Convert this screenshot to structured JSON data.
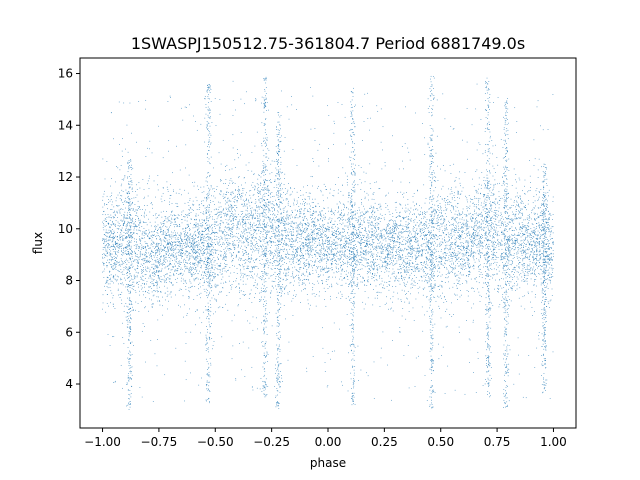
{
  "chart_data": {
    "type": "scatter",
    "title": "1SWASPJ150512.75-361804.7 Period 6881749.0s",
    "xlabel": "phase",
    "ylabel": "flux",
    "xlim": [
      -1.1,
      1.1
    ],
    "ylim": [
      2.3,
      16.6
    ],
    "x_ticks": [
      -1.0,
      -0.75,
      -0.5,
      -0.25,
      0.0,
      0.25,
      0.5,
      0.75,
      1.0
    ],
    "x_tick_labels": [
      "−1.00",
      "−0.75",
      "−0.50",
      "−0.25",
      "0.00",
      "0.25",
      "0.50",
      "0.75",
      "1.00"
    ],
    "y_ticks": [
      4,
      6,
      8,
      10,
      12,
      14,
      16
    ],
    "y_tick_labels": [
      "4",
      "6",
      "8",
      "10",
      "12",
      "14",
      "16"
    ],
    "grid": false,
    "legend": "none",
    "marker_color": "#1f77b4",
    "series": [
      {
        "x_range": [
          -1.0,
          1.0
        ],
        "envelope": {
          "phase": [
            -1.0,
            -0.95,
            -0.9,
            -0.85,
            -0.8,
            -0.75,
            -0.7,
            -0.65,
            -0.6,
            -0.55,
            -0.5,
            -0.45,
            -0.4,
            -0.35,
            -0.3,
            -0.25,
            -0.2,
            -0.15,
            -0.1,
            -0.05,
            0.0,
            0.05,
            0.1,
            0.15,
            0.2,
            0.25,
            0.3,
            0.35,
            0.4,
            0.45,
            0.5,
            0.55,
            0.6,
            0.65,
            0.7,
            0.75,
            0.8,
            0.85,
            0.9,
            0.95,
            1.0
          ],
          "center": [
            9.5,
            9.2,
            9.6,
            9.3,
            9.1,
            9.0,
            9.4,
            9.2,
            9.3,
            9.5,
            9.1,
            9.8,
            10.0,
            9.7,
            9.8,
            10.0,
            9.6,
            9.4,
            9.5,
            9.6,
            9.4,
            9.5,
            9.3,
            9.5,
            9.4,
            9.3,
            9.4,
            9.2,
            9.4,
            9.3,
            9.7,
            9.5,
            9.4,
            9.6,
            10.0,
            9.7,
            9.4,
            9.5,
            9.3,
            9.6,
            9.3
          ],
          "spread": [
            1.6,
            1.5,
            2.0,
            1.8,
            1.6,
            1.4,
            1.5,
            1.3,
            1.4,
            1.3,
            1.9,
            1.7,
            1.9,
            1.7,
            2.0,
            1.9,
            1.6,
            1.4,
            1.5,
            1.4,
            1.3,
            1.4,
            1.6,
            1.4,
            1.3,
            1.4,
            1.3,
            1.4,
            1.3,
            1.5,
            1.8,
            1.6,
            1.5,
            1.6,
            1.9,
            1.8,
            1.6,
            1.5,
            1.4,
            1.5,
            1.4
          ]
        },
        "spikes": [
          {
            "phase": -0.88,
            "low": 3.0,
            "high": 13.0
          },
          {
            "phase": -0.53,
            "low": 3.2,
            "high": 15.6
          },
          {
            "phase": -0.28,
            "low": 3.5,
            "high": 15.9
          },
          {
            "phase": -0.22,
            "low": 3.0,
            "high": 14.5
          },
          {
            "phase": 0.11,
            "low": 3.0,
            "high": 15.5
          },
          {
            "phase": 0.46,
            "low": 3.0,
            "high": 15.9
          },
          {
            "phase": 0.71,
            "low": 3.5,
            "high": 15.9
          },
          {
            "phase": 0.79,
            "low": 3.0,
            "high": 15.0
          },
          {
            "phase": 0.96,
            "low": 3.6,
            "high": 12.5
          }
        ]
      }
    ]
  }
}
